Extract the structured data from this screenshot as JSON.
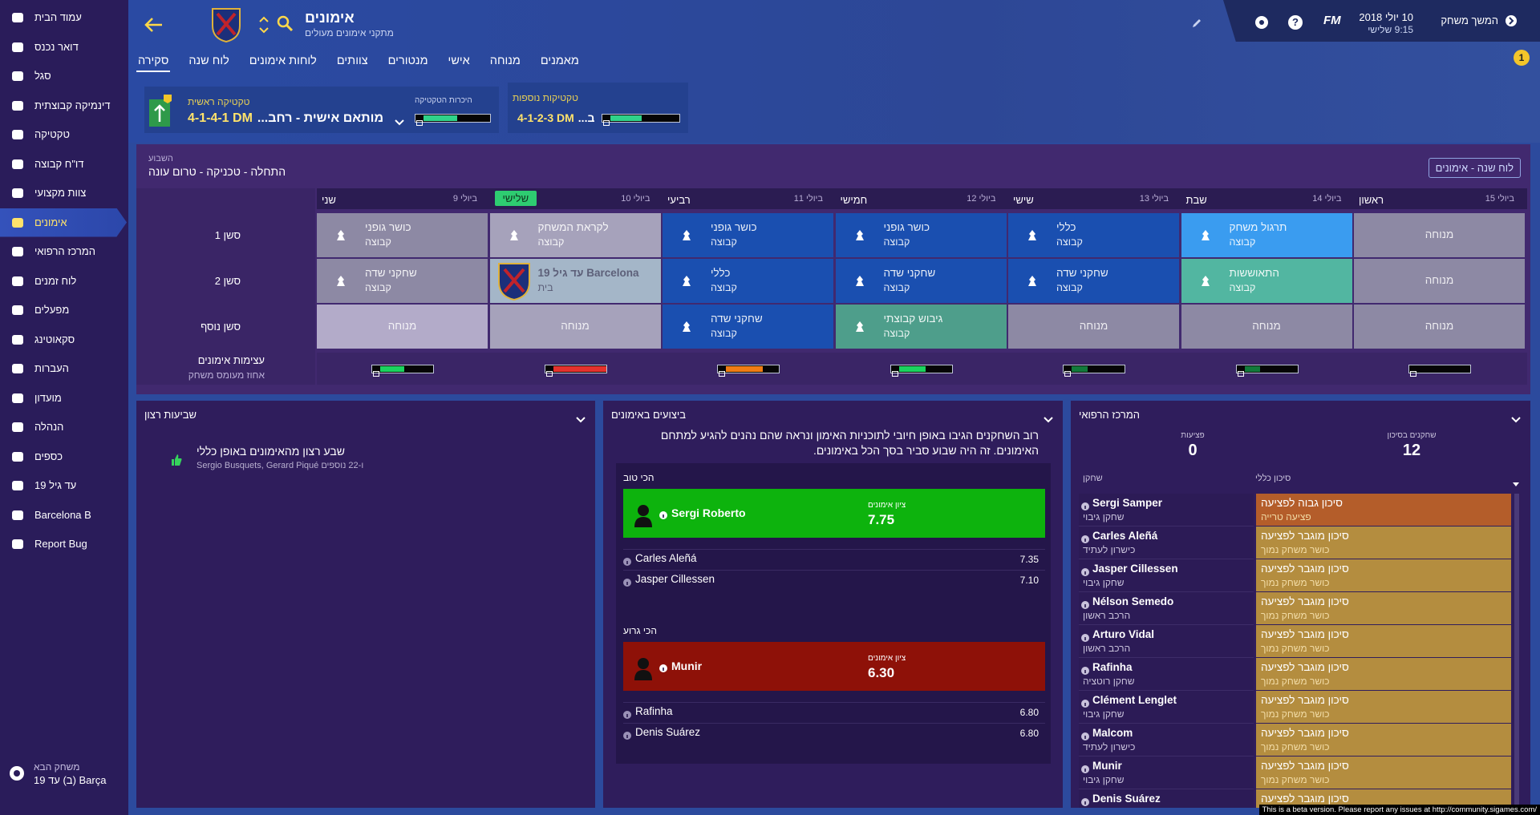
{
  "sidebar": {
    "items": [
      "עמוד הבית",
      "דואר נכנס",
      "סגל",
      "דינמיקה קבוצתית",
      "טקטיקה",
      "דו\"ח קבוצה",
      "צוות מקצועי",
      "אימונים",
      "המרכז הרפואי",
      "לוח זמנים",
      "מפעלים",
      "סקאוטינג",
      "העברות",
      "מועדון",
      "הנהלה",
      "כספים",
      "עד גיל 19",
      "Barcelona B",
      "Report Bug"
    ],
    "active": 7,
    "next_match": {
      "label": "משחק הבא",
      "value": "Barça (ב) עד 19"
    }
  },
  "header": {
    "title": "אימונים",
    "subtitle": "מתקני אימונים מעולים",
    "tabs": [
      "סקירה",
      "לוח שנה",
      "לוחות אימונים",
      "צוותים",
      "מנטורים",
      "אישי",
      "מנוחה",
      "מאמנים"
    ],
    "active_tab": 0,
    "continue": "המשך משחק",
    "date": "10 יולי 2018",
    "time": "9:15 שלישי",
    "logo": "FM",
    "help": "?",
    "notifications": 1
  },
  "tactics": {
    "main": {
      "label": "טקטיקה ראשית",
      "formation": "4-1-4-1 DM",
      "style": "מותאם אישית - רחב...",
      "familiarity_label": "היכרות הטקטיקה",
      "familiarity": 50
    },
    "other": {
      "label": "טקטיקות נוספות",
      "formation": "4-1-2-3 DM",
      "style": "ב...",
      "familiarity": 45
    }
  },
  "week": {
    "label": "השבוע",
    "focus": "התחלה - טכניקה - טרום עונה",
    "calendar_button": "לוח שנה - אימונים",
    "days": [
      {
        "name": "שני",
        "date": "9 ביולי"
      },
      {
        "name": "שלישי",
        "date": "10 ביולי"
      },
      {
        "name": "רביעי",
        "date": "11 ביולי"
      },
      {
        "name": "חמישי",
        "date": "12 ביולי"
      },
      {
        "name": "שישי",
        "date": "13 ביולי"
      },
      {
        "name": "שבת",
        "date": "14 ביולי"
      },
      {
        "name": "ראשון",
        "date": "15 ביולי"
      }
    ],
    "today": 1,
    "sessions": [
      {
        "label": "סשן 1",
        "cells": [
          {
            "title": "כושר גופני",
            "subtitle": "קבוצה",
            "color": "#8d89a4"
          },
          {
            "title": "לקראת המשחק",
            "subtitle": "קבוצה",
            "color": "#a6a2bb"
          },
          {
            "title": "כושר גופני",
            "subtitle": "קבוצה",
            "color": "#1a4fb0"
          },
          {
            "title": "כושר גופני",
            "subtitle": "קבוצה",
            "color": "#1a4fb0"
          },
          {
            "title": "כללי",
            "subtitle": "קבוצה",
            "color": "#1a4fb0"
          },
          {
            "title": "תרגול משחק",
            "subtitle": "קבוצה",
            "color": "#3a9cf0"
          },
          {
            "title": "מנוחה",
            "color": "#8d89a4"
          }
        ]
      },
      {
        "label": "סשן 2",
        "cells": [
          {
            "title": "שחקני שדה",
            "subtitle": "קבוצה",
            "color": "#8d89a4"
          },
          {
            "title": "Barcelona עד גיל 19",
            "subtitle": "בית",
            "color": "#a4b6c8",
            "match": true
          },
          {
            "title": "כללי",
            "subtitle": "קבוצה",
            "color": "#1a4fb0"
          },
          {
            "title": "שחקני שדה",
            "subtitle": "קבוצה",
            "color": "#1a4fb0"
          },
          {
            "title": "שחקני שדה",
            "subtitle": "קבוצה",
            "color": "#1a4fb0"
          },
          {
            "title": "התאוששות",
            "subtitle": "קבוצה",
            "color": "#52b6a1"
          },
          {
            "title": "מנוחה",
            "color": "#8d89a4"
          }
        ]
      },
      {
        "label": "סשן נוסף",
        "cells": [
          {
            "title": "מנוחה",
            "color": "#b3abc9"
          },
          {
            "title": "מנוחה",
            "color": "#a6a2bb"
          },
          {
            "title": "שחקני שדה",
            "subtitle": "קבוצה",
            "color": "#1a4fb0"
          },
          {
            "title": "גיבוש קבוצתי",
            "subtitle": "קבוצה",
            "color": "#4e9e8b"
          },
          {
            "title": "מנוחה",
            "color": "#8d89a4"
          },
          {
            "title": "מנוחה",
            "color": "#8d89a4"
          },
          {
            "title": "מנוחה",
            "color": "#8d89a4"
          }
        ]
      }
    ],
    "intensity": {
      "label": "עצימות אימונים",
      "sublabel": "אחוז מעומס משחק",
      "values": [
        45,
        100,
        70,
        50,
        30,
        30,
        0
      ],
      "colors": [
        "#1bd35f",
        "#e5322d",
        "#f07d14",
        "#1bd35f",
        "#127a3b",
        "#127a3b",
        "#127a3b"
      ]
    }
  },
  "happiness": {
    "title": "שביעות רצון",
    "text": "שבע רצון מהאימונים באופן כללי",
    "players": "Sergio Busquets, Gerard Piqué ו-22 נוספים"
  },
  "performance": {
    "title": "ביצועים באימונים",
    "summary": "רוב השחקנים הגיבו באופן חיובי לתוכניות האימון ונראה שהם נהנים להגיע למתחם האימונים. זה היה שבוע סביר בסך הכל באימונים.",
    "rating_label": "ציון אימונים",
    "best": {
      "label": "הכי טוב",
      "players": [
        {
          "name": "Sergi Roberto",
          "score": "7.75"
        },
        {
          "name": "Carles Aleñá",
          "score": "7.35"
        },
        {
          "name": "Jasper Cillessen",
          "score": "7.10"
        }
      ]
    },
    "worst": {
      "label": "הכי גרוע",
      "players": [
        {
          "name": "Munir",
          "score": "6.30"
        },
        {
          "name": "Rafinha",
          "score": "6.80"
        },
        {
          "name": "Denis Suárez",
          "score": "6.80"
        }
      ]
    }
  },
  "medical": {
    "title": "המרכז הרפואי",
    "at_risk_label": "שחקנים בסיכון",
    "at_risk": 12,
    "injuries_label": "פציעות",
    "injuries": 0,
    "col_player": "שחקן",
    "col_risk": "סיכון כללי",
    "rows": [
      {
        "name": "Sergi Samper",
        "role": "שחקן גיבוי",
        "risk": "סיכון גבוה לפציעה",
        "reason": "פציעה טרייה",
        "color": "#b45d2a"
      },
      {
        "name": "Carles Aleñá",
        "role": "כישרון לעתיד",
        "risk": "סיכון מוגבר לפציעה",
        "reason": "כושר משחק נמוך",
        "color": "#b48d3f"
      },
      {
        "name": "Jasper Cillessen",
        "role": "שחקן גיבוי",
        "risk": "סיכון מוגבר לפציעה",
        "reason": "כושר משחק נמוך",
        "color": "#b48d3f"
      },
      {
        "name": "Nélson Semedo",
        "role": "הרכב ראשון",
        "risk": "סיכון מוגבר לפציעה",
        "reason": "כושר משחק נמוך",
        "color": "#b48d3f"
      },
      {
        "name": "Arturo Vidal",
        "role": "הרכב ראשון",
        "risk": "סיכון מוגבר לפציעה",
        "reason": "כושר משחק נמוך",
        "color": "#b48d3f"
      },
      {
        "name": "Rafinha",
        "role": "שחקן רוטציה",
        "risk": "סיכון מוגבר לפציעה",
        "reason": "כושר משחק נמוך",
        "color": "#b48d3f"
      },
      {
        "name": "Clément Lenglet",
        "role": "שחקן גיבוי",
        "risk": "סיכון מוגבר לפציעה",
        "reason": "כושר משחק נמוך",
        "color": "#b48d3f"
      },
      {
        "name": "Malcom",
        "role": "כישרון לעתיד",
        "risk": "סיכון מוגבר לפציעה",
        "reason": "כושר משחק נמוך",
        "color": "#b48d3f"
      },
      {
        "name": "Munir",
        "role": "שחקן גיבוי",
        "risk": "סיכון מוגבר לפציעה",
        "reason": "כושר משחק נמוך",
        "color": "#b48d3f"
      },
      {
        "name": "Denis Suárez",
        "risk": "סיכון מוגבר לפציעה",
        "color": "#b48d3f"
      }
    ]
  },
  "footer": "This is a beta version. Please report any issues at http://community.sigames.com/"
}
